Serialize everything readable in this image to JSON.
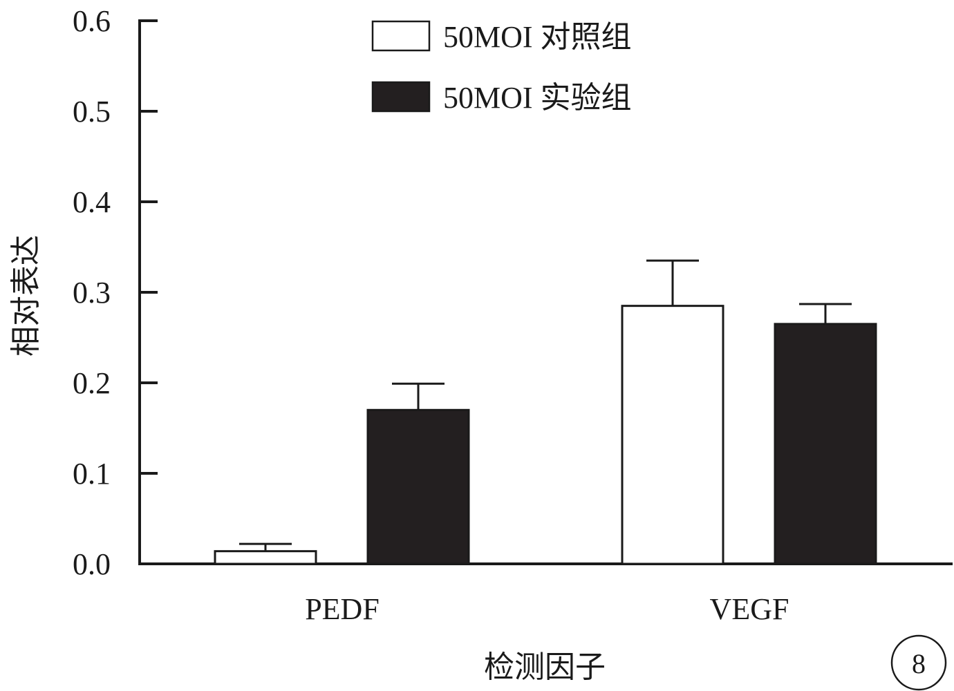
{
  "chart_data": {
    "type": "bar",
    "categories": [
      "PEDF",
      "VEGF"
    ],
    "series": [
      {
        "name": "50MOI 对照组",
        "values": [
          0.014,
          0.285
        ],
        "errors": [
          0.008,
          0.05
        ],
        "fill": "#ffffff"
      },
      {
        "name": "50MOI 实验组",
        "values": [
          0.17,
          0.265
        ],
        "errors": [
          0.029,
          0.022
        ],
        "fill": "#231f20"
      }
    ],
    "xlabel": "检测因子",
    "ylabel": "相对表达",
    "ylim": [
      0,
      0.6
    ],
    "yticks": [
      "0.0",
      "0.1",
      "0.2",
      "0.3",
      "0.4",
      "0.5",
      "0.6"
    ],
    "legend_position": "top-center",
    "grid": false,
    "panel_label": "8"
  }
}
